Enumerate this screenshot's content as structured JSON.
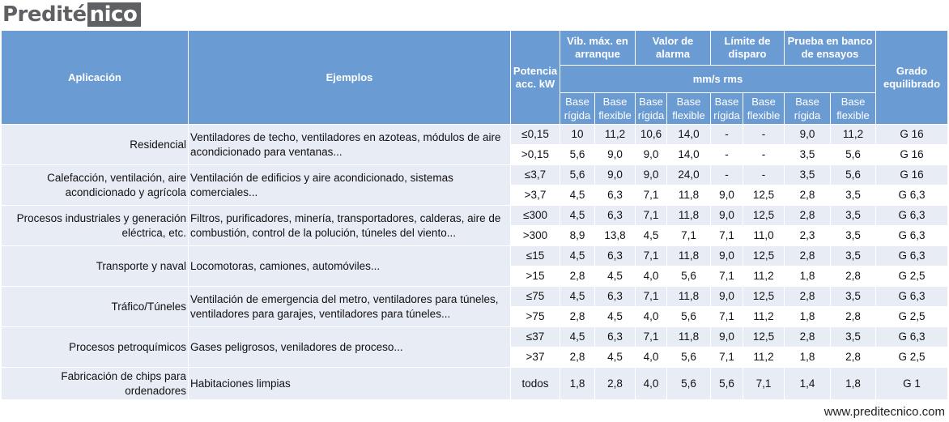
{
  "logo": {
    "part1": "Predité",
    "part2": "nico"
  },
  "headers": {
    "aplicacion": "Aplicación",
    "ejemplos": "Ejemplos",
    "potencia": "Potencia acc. kW",
    "vib": "Vib. máx. en arranque",
    "alarma": "Valor de alarma",
    "disparo": "Límite de disparo",
    "prueba": "Prueba en banco de ensayos",
    "grado": "Grado equilibrado",
    "unit": "mm/s rms",
    "rigida": "Base rígida",
    "flexible": "Base flexible"
  },
  "groups": [
    {
      "app": "Residencial",
      "ex": "Ventiladores de techo, ventiladores en azoteas, módulos de aire acondicionado para ventanas...",
      "rows": [
        [
          "≤0,15",
          "10",
          "11,2",
          "10,6",
          "14,0",
          "-",
          "-",
          "9,0",
          "11,2",
          "G 16"
        ],
        [
          ">0,15",
          "5,6",
          "9,0",
          "9,0",
          "14,0",
          "-",
          "-",
          "3,5",
          "5,6",
          "G 16"
        ]
      ]
    },
    {
      "app": "Calefacción, ventilación, aire acondicionado y agrícola",
      "ex": "Ventilación de edificios y aire acondicionado, sistemas comerciales...",
      "rows": [
        [
          "≤3,7",
          "5,6",
          "9,0",
          "9,0",
          "24,0",
          "-",
          "-",
          "3,5",
          "5,6",
          "G 16"
        ],
        [
          ">3,7",
          "4,5",
          "6,3",
          "7,1",
          "11,8",
          "9,0",
          "12,5",
          "2,8",
          "3,5",
          "G 6,3"
        ]
      ]
    },
    {
      "app": "Procesos industriales y generación eléctrica, etc.",
      "ex": "Filtros, purificadores, minería, transportadores, calderas, aire de combustión, control de la polución, túneles del viento...",
      "rows": [
        [
          "≤300",
          "4,5",
          "6,3",
          "7,1",
          "11,8",
          "9,0",
          "12,5",
          "2,8",
          "3,5",
          "G 6,3"
        ],
        [
          ">300",
          "8,9",
          "13,8",
          "4,5",
          "7,1",
          "7,1",
          "11,0",
          "2,3",
          "3,5",
          "G 6,3"
        ]
      ]
    },
    {
      "app": "Transporte y naval",
      "ex": "Locomotoras, camiones, automóviles...",
      "rows": [
        [
          "≤15",
          "4,5",
          "6,3",
          "7,1",
          "11,8",
          "9,0",
          "12,5",
          "2,8",
          "3,5",
          "G 6,3"
        ],
        [
          ">15",
          "2,8",
          "4,5",
          "4,0",
          "5,6",
          "7,1",
          "11,2",
          "1,8",
          "2,8",
          "G 2,5"
        ]
      ]
    },
    {
      "app": "Tráfico/Túneles",
      "ex": "Ventilación de emergencia del metro, ventiladores para túneles, ventiladores para garajes, ventiladores para túneles...",
      "rows": [
        [
          "≤75",
          "4,5",
          "6,3",
          "7,1",
          "11,8",
          "9,0",
          "12,5",
          "2,8",
          "3,5",
          "G 6,3"
        ],
        [
          ">75",
          "2,8",
          "4,5",
          "4,0",
          "5,6",
          "7,1",
          "11,2",
          "1,8",
          "2,8",
          "G 2,5"
        ]
      ]
    },
    {
      "app": "Procesos petroquímicos",
      "ex": "Gases peligrosos, veniladores de proceso...",
      "rows": [
        [
          "≤37",
          "4,5",
          "6,3",
          "7,1",
          "11,8",
          "9,0",
          "12,5",
          "2,8",
          "3,5",
          "G 6,3"
        ],
        [
          ">37",
          "2,8",
          "4,5",
          "4,0",
          "5,6",
          "7,1",
          "11,2",
          "1,8",
          "2,8",
          "G 2,5"
        ]
      ]
    },
    {
      "app": "Fabricación de chips para ordenadores",
      "ex": "Habitaciones limpias",
      "rows": [
        [
          "todos",
          "1,8",
          "2,8",
          "4,0",
          "5,6",
          "5,6",
          "7,1",
          "1,4",
          "1,8",
          "G 1"
        ]
      ]
    }
  ],
  "footer": "www.preditecnico.com"
}
